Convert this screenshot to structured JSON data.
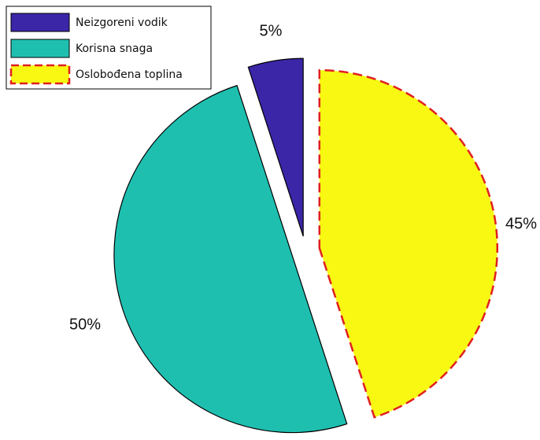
{
  "chart_data": {
    "type": "pie",
    "categories": [
      "Neizgoreni vodik",
      "Korisna snaga",
      "Oslobođena toplina"
    ],
    "values": [
      5,
      50,
      45
    ],
    "value_labels": [
      "5%",
      "50%",
      "45%"
    ],
    "colors": [
      "#3b26a8",
      "#1fbfb0",
      "#f8f812"
    ],
    "edgecolors": [
      "#000000",
      "#000000",
      "#e02020"
    ],
    "dashed": [
      false,
      false,
      true
    ],
    "legend": "upper left"
  }
}
